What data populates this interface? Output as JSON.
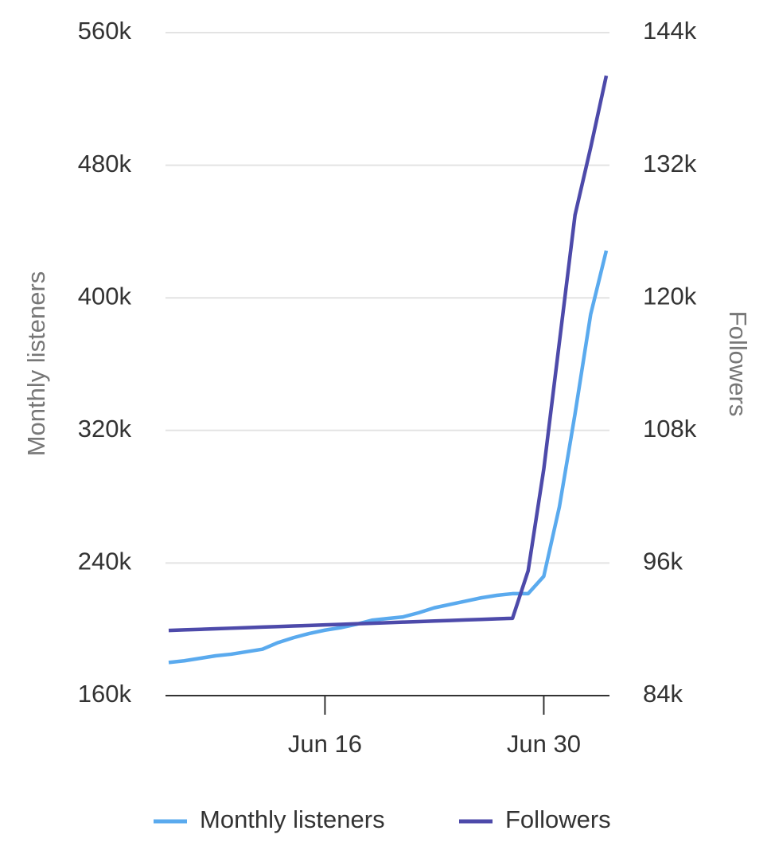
{
  "chart_data": {
    "type": "line",
    "categories": [
      null,
      null,
      null,
      null,
      null,
      null,
      null,
      null,
      null,
      null,
      "Jun 16",
      null,
      null,
      null,
      null,
      null,
      null,
      null,
      null,
      null,
      null,
      null,
      null,
      null,
      "Jun 30",
      null,
      null,
      null,
      null
    ],
    "series": [
      {
        "name": "Monthly listeners",
        "color": "#5aaaee",
        "axis": "y",
        "values": [
          180000,
          181000,
          182500,
          184000,
          185000,
          186500,
          188000,
          192000,
          195000,
          197500,
          199500,
          201000,
          203000,
          205500,
          206500,
          207500,
          210000,
          213000,
          215000,
          217000,
          219000,
          220500,
          221500,
          221500,
          232000,
          274000,
          330000,
          390000,
          428500
        ]
      },
      {
        "name": "Followers",
        "color": "#4d4aaa",
        "axis": "y2",
        "values": [
          89900,
          89950,
          90000,
          90050,
          90100,
          90150,
          90200,
          90250,
          90300,
          90350,
          90400,
          90450,
          90500,
          90550,
          90600,
          90650,
          90700,
          90750,
          90800,
          90850,
          90900,
          90950,
          91000,
          95300,
          104500,
          116000,
          127500,
          133600,
          140100
        ]
      }
    ],
    "ylabel": "Monthly listeners",
    "y2label": "Followers",
    "ylim": [
      160000,
      560000
    ],
    "yticks": [
      {
        "value": 160000,
        "label": "160k"
      },
      {
        "value": 240000,
        "label": "240k"
      },
      {
        "value": 320000,
        "label": "320k"
      },
      {
        "value": 400000,
        "label": "400k"
      },
      {
        "value": 480000,
        "label": "480k"
      },
      {
        "value": 560000,
        "label": "560k"
      }
    ],
    "y2lim": [
      84000,
      144000
    ],
    "y2ticks": [
      {
        "value": 84000,
        "label": "84k"
      },
      {
        "value": 96000,
        "label": "96k"
      },
      {
        "value": 108000,
        "label": "108k"
      },
      {
        "value": 120000,
        "label": "120k"
      },
      {
        "value": 132000,
        "label": "132k"
      },
      {
        "value": 144000,
        "label": "144k"
      }
    ],
    "grid": true,
    "legend": "bottom"
  }
}
